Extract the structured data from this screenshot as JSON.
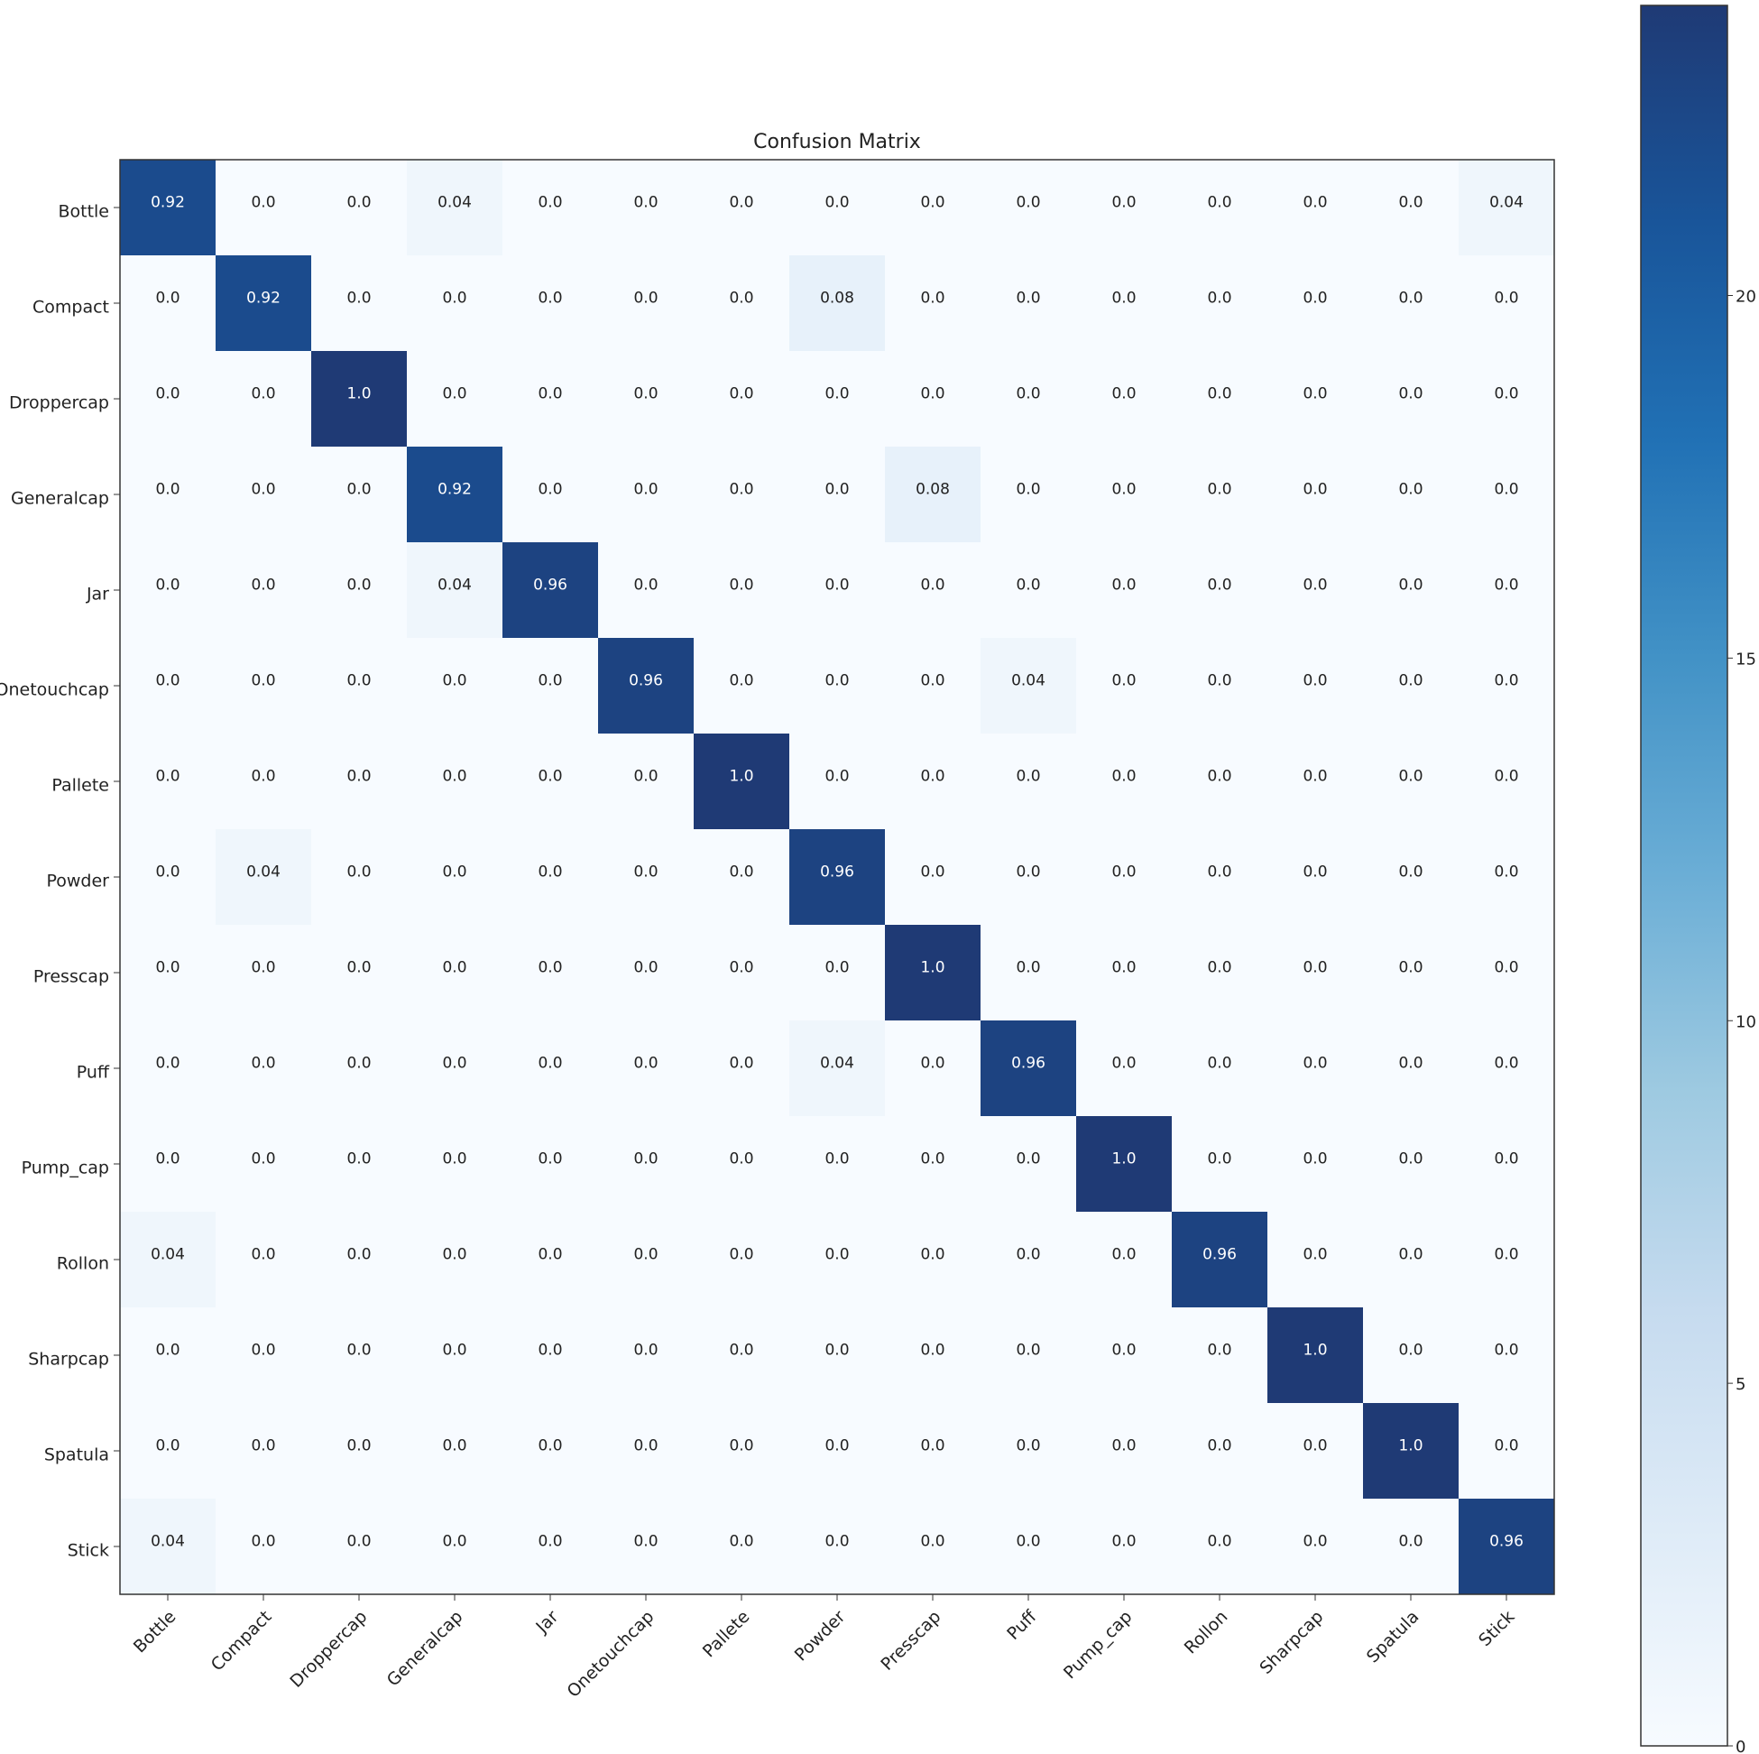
{
  "chart_data": {
    "type": "heatmap",
    "title": "Confusion Matrix",
    "categories": [
      "Bottle",
      "Compact",
      "Droppercap",
      "Generalcap",
      "Jar",
      "Onetouchcap",
      "Pallete",
      "Powder",
      "Presscap",
      "Puff",
      "Pump_cap",
      "Rollon",
      "Sharpcap",
      "Spatula",
      "Stick"
    ],
    "values": [
      [
        0.92,
        0,
        0,
        0.04,
        0,
        0,
        0,
        0,
        0,
        0,
        0,
        0,
        0,
        0,
        0.04
      ],
      [
        0,
        0.92,
        0,
        0,
        0,
        0,
        0,
        0.08,
        0,
        0,
        0,
        0,
        0,
        0,
        0
      ],
      [
        0,
        0,
        1,
        0,
        0,
        0,
        0,
        0,
        0,
        0,
        0,
        0,
        0,
        0,
        0
      ],
      [
        0,
        0,
        0,
        0.92,
        0,
        0,
        0,
        0,
        0.08,
        0,
        0,
        0,
        0,
        0,
        0
      ],
      [
        0,
        0,
        0,
        0.04,
        0.96,
        0,
        0,
        0,
        0,
        0,
        0,
        0,
        0,
        0,
        0
      ],
      [
        0,
        0,
        0,
        0,
        0,
        0.96,
        0,
        0,
        0,
        0.04,
        0,
        0,
        0,
        0,
        0
      ],
      [
        0,
        0,
        0,
        0,
        0,
        0,
        1,
        0,
        0,
        0,
        0,
        0,
        0,
        0,
        0
      ],
      [
        0,
        0.04,
        0,
        0,
        0,
        0,
        0,
        0.96,
        0,
        0,
        0,
        0,
        0,
        0,
        0
      ],
      [
        0,
        0,
        0,
        0,
        0,
        0,
        0,
        0,
        1,
        0,
        0,
        0,
        0,
        0,
        0
      ],
      [
        0,
        0,
        0,
        0,
        0,
        0,
        0,
        0.04,
        0,
        0.96,
        0,
        0,
        0,
        0,
        0
      ],
      [
        0,
        0,
        0,
        0,
        0,
        0,
        0,
        0,
        0,
        0,
        1,
        0,
        0,
        0,
        0
      ],
      [
        0.04,
        0,
        0,
        0,
        0,
        0,
        0,
        0,
        0,
        0,
        0,
        0.96,
        0,
        0,
        0
      ],
      [
        0,
        0,
        0,
        0,
        0,
        0,
        0,
        0,
        0,
        0,
        0,
        0,
        1,
        0,
        0
      ],
      [
        0,
        0,
        0,
        0,
        0,
        0,
        0,
        0,
        0,
        0,
        0,
        0,
        0,
        1,
        0
      ],
      [
        0.04,
        0,
        0,
        0,
        0,
        0,
        0,
        0,
        0,
        0,
        0,
        0,
        0,
        0,
        0.96
      ]
    ],
    "value_labels": [
      [
        "0.92",
        "0.0",
        "0.0",
        "0.04",
        "0.0",
        "0.0",
        "0.0",
        "0.0",
        "0.0",
        "0.0",
        "0.0",
        "0.0",
        "0.0",
        "0.0",
        "0.04"
      ],
      [
        "0.0",
        "0.92",
        "0.0",
        "0.0",
        "0.0",
        "0.0",
        "0.0",
        "0.08",
        "0.0",
        "0.0",
        "0.0",
        "0.0",
        "0.0",
        "0.0",
        "0.0"
      ],
      [
        "0.0",
        "0.0",
        "1.0",
        "0.0",
        "0.0",
        "0.0",
        "0.0",
        "0.0",
        "0.0",
        "0.0",
        "0.0",
        "0.0",
        "0.0",
        "0.0",
        "0.0"
      ],
      [
        "0.0",
        "0.0",
        "0.0",
        "0.92",
        "0.0",
        "0.0",
        "0.0",
        "0.0",
        "0.08",
        "0.0",
        "0.0",
        "0.0",
        "0.0",
        "0.0",
        "0.0"
      ],
      [
        "0.0",
        "0.0",
        "0.0",
        "0.04",
        "0.96",
        "0.0",
        "0.0",
        "0.0",
        "0.0",
        "0.0",
        "0.0",
        "0.0",
        "0.0",
        "0.0",
        "0.0"
      ],
      [
        "0.0",
        "0.0",
        "0.0",
        "0.0",
        "0.0",
        "0.96",
        "0.0",
        "0.0",
        "0.0",
        "0.04",
        "0.0",
        "0.0",
        "0.0",
        "0.0",
        "0.0"
      ],
      [
        "0.0",
        "0.0",
        "0.0",
        "0.0",
        "0.0",
        "0.0",
        "1.0",
        "0.0",
        "0.0",
        "0.0",
        "0.0",
        "0.0",
        "0.0",
        "0.0",
        "0.0"
      ],
      [
        "0.0",
        "0.04",
        "0.0",
        "0.0",
        "0.0",
        "0.0",
        "0.0",
        "0.96",
        "0.0",
        "0.0",
        "0.0",
        "0.0",
        "0.0",
        "0.0",
        "0.0"
      ],
      [
        "0.0",
        "0.0",
        "0.0",
        "0.0",
        "0.0",
        "0.0",
        "0.0",
        "0.0",
        "1.0",
        "0.0",
        "0.0",
        "0.0",
        "0.0",
        "0.0",
        "0.0"
      ],
      [
        "0.0",
        "0.0",
        "0.0",
        "0.0",
        "0.0",
        "0.0",
        "0.0",
        "0.04",
        "0.0",
        "0.96",
        "0.0",
        "0.0",
        "0.0",
        "0.0",
        "0.0"
      ],
      [
        "0.0",
        "0.0",
        "0.0",
        "0.0",
        "0.0",
        "0.0",
        "0.0",
        "0.0",
        "0.0",
        "0.0",
        "1.0",
        "0.0",
        "0.0",
        "0.0",
        "0.0"
      ],
      [
        "0.04",
        "0.0",
        "0.0",
        "0.0",
        "0.0",
        "0.0",
        "0.0",
        "0.0",
        "0.0",
        "0.0",
        "0.0",
        "0.96",
        "0.0",
        "0.0",
        "0.0"
      ],
      [
        "0.0",
        "0.0",
        "0.0",
        "0.0",
        "0.0",
        "0.0",
        "0.0",
        "0.0",
        "0.0",
        "0.0",
        "0.0",
        "0.0",
        "1.0",
        "0.0",
        "0.0"
      ],
      [
        "0.0",
        "0.0",
        "0.0",
        "0.0",
        "0.0",
        "0.0",
        "0.0",
        "0.0",
        "0.0",
        "0.0",
        "0.0",
        "0.0",
        "0.0",
        "1.0",
        "0.0"
      ],
      [
        "0.04",
        "0.0",
        "0.0",
        "0.0",
        "0.0",
        "0.0",
        "0.0",
        "0.0",
        "0.0",
        "0.0",
        "0.0",
        "0.0",
        "0.0",
        "0.0",
        "0.96"
      ]
    ],
    "colormap": [
      "#f7fbff",
      "#deebf7",
      "#c6dbef",
      "#9ecae1",
      "#6baed6",
      "#4292c6",
      "#2171b5",
      "#19559a",
      "#1f3a75"
    ],
    "colorbar": {
      "clim": [
        0,
        24
      ],
      "ticks": [
        0,
        5,
        10,
        15,
        20
      ]
    }
  }
}
